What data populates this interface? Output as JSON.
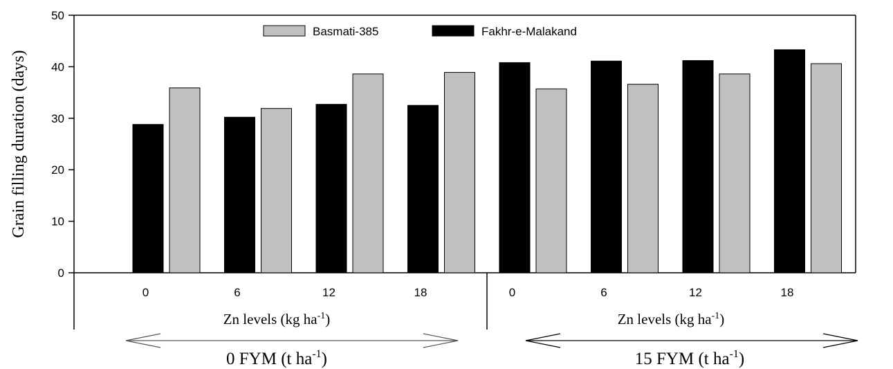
{
  "chart_data": {
    "type": "bar",
    "ylabel": "Grain filling duration (days)",
    "ylim": [
      0,
      50
    ],
    "yticks": [
      "0",
      "10",
      "20",
      "30",
      "40",
      "50"
    ],
    "grid": false,
    "legend_position": "top",
    "groups": [
      {
        "label": "0 FYM (t ha",
        "label_sup": "-1",
        "label_suffix": ")",
        "xlabel": "Zn levels (kg ha",
        "xlabel_sup": "-1",
        "xlabel_suffix": ")",
        "categories": [
          "0",
          "6",
          "12",
          "18"
        ]
      },
      {
        "label": "15 FYM (t ha",
        "label_sup": "-1",
        "label_suffix": ")",
        "xlabel": "Zn levels (kg ha",
        "xlabel_sup": "-1",
        "xlabel_suffix": ")",
        "categories": [
          "0",
          "6",
          "12",
          "18"
        ]
      }
    ],
    "series": [
      {
        "name": "Basmati-385",
        "color": "#c0c0c0",
        "values": [
          35.9,
          31.9,
          38.6,
          38.9,
          35.7,
          36.6,
          38.6,
          40.6
        ]
      },
      {
        "name": "Fakhr-e-Malakand",
        "color": "#000000",
        "values": [
          28.8,
          30.2,
          32.7,
          32.5,
          40.8,
          41.1,
          41.2,
          43.3
        ]
      }
    ],
    "bar_order": [
      [
        "Fakhr-e-Malakand",
        "Basmati-385"
      ],
      [
        "Fakhr-e-Malakand",
        "Basmati-385"
      ],
      [
        "Fakhr-e-Malakand",
        "Basmati-385"
      ],
      [
        "Fakhr-e-Malakand",
        "Basmati-385"
      ],
      [
        "Fakhr-e-Malakand",
        "Basmati-385"
      ],
      [
        "Fakhr-e-Malakand",
        "Basmati-385"
      ],
      [
        "Fakhr-e-Malakand",
        "Basmati-385"
      ],
      [
        "Fakhr-e-Malakand",
        "Basmati-385"
      ]
    ]
  }
}
